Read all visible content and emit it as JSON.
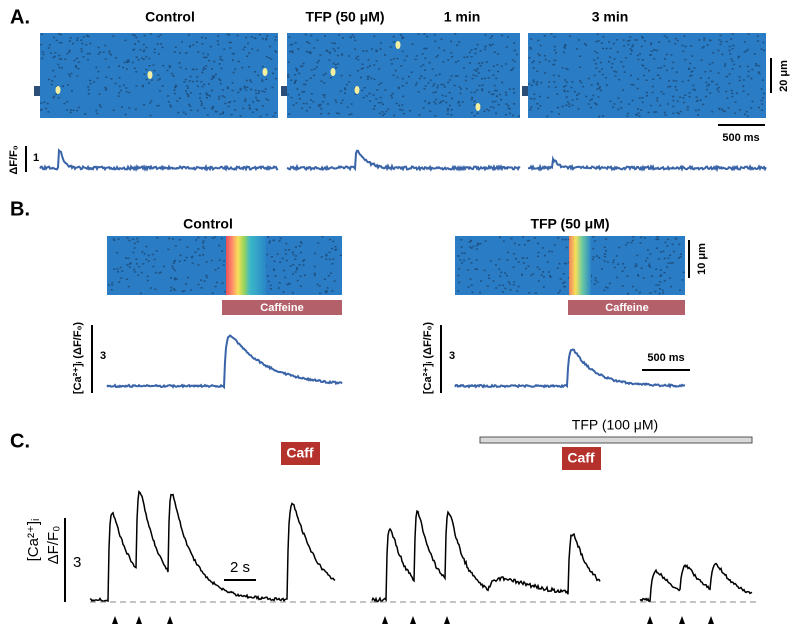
{
  "panel_a": {
    "label": "A.",
    "titles": [
      "Control",
      "TFP (50 μM)",
      "1 min",
      "3 min"
    ],
    "scale_space": "20 μm",
    "scale_time": "500 ms",
    "y_label": "ΔF/F₀",
    "y_scale": "1"
  },
  "panel_b": {
    "label": "B.",
    "titles": [
      "Control",
      "TFP (50 μM)"
    ],
    "scale_space": "10 μm",
    "drug": [
      "Caffeine",
      "Caffeine"
    ],
    "y_labels": [
      "[Ca²⁺]ᵢ (ΔF/F₀)",
      "[Ca²⁺]ᵢ (ΔF/F₀)"
    ],
    "y_scales": [
      "3",
      "3"
    ],
    "scale_time": "500 ms"
  },
  "panel_c": {
    "label": "C.",
    "drug_bar": "TFP (100 μM)",
    "caff": [
      "Caff",
      "Caff"
    ],
    "y_label_1": "[Ca²⁺]ᵢ",
    "y_label_2": "ΔF/F₀",
    "y_scale": "3",
    "scale_time": "2 s"
  }
}
